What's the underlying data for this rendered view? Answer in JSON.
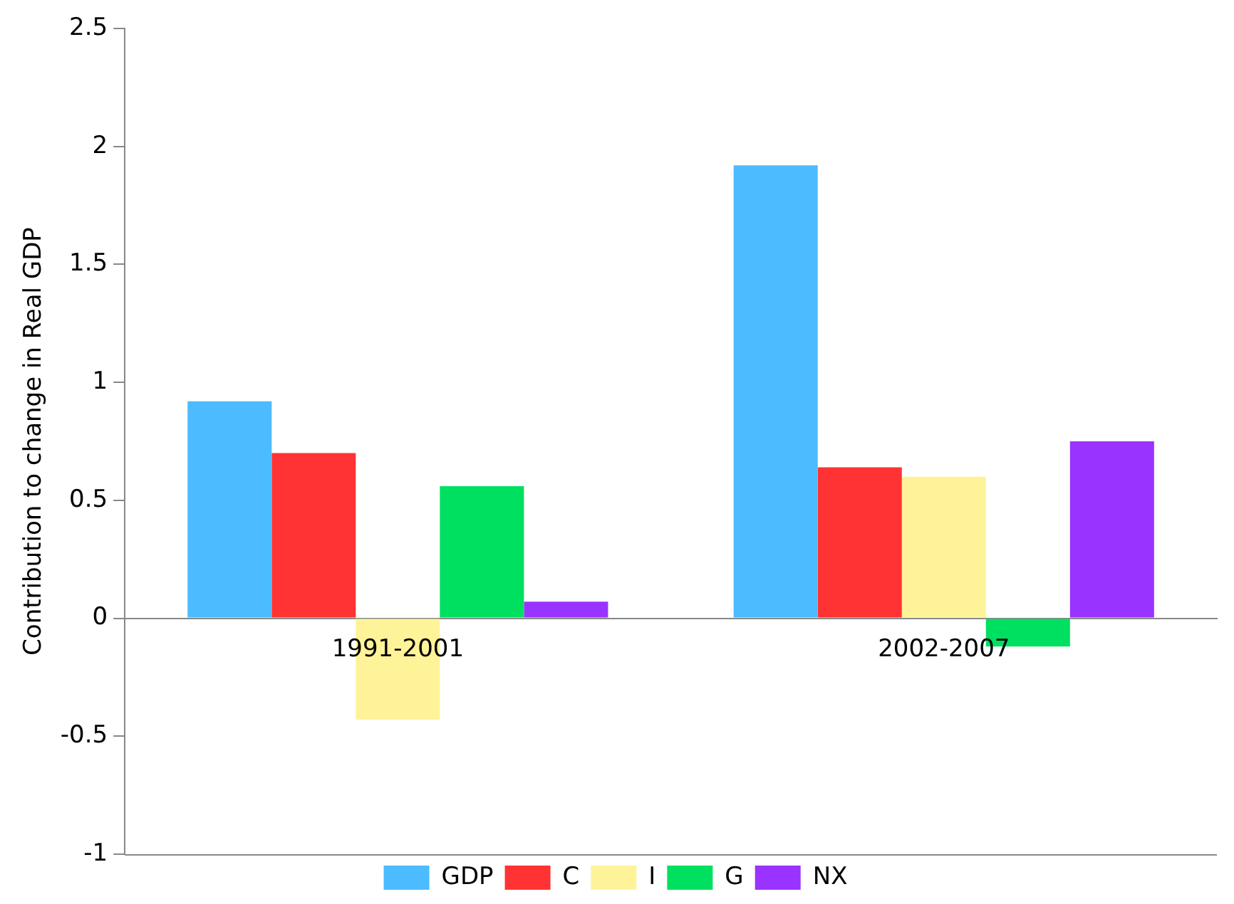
{
  "chart_data": {
    "type": "bar",
    "ylabel": "Contribution to change in Real GDP",
    "categories": [
      "1991-2001",
      "2002-2007"
    ],
    "series": [
      {
        "name": "GDP",
        "color": "#4dbbff",
        "values": [
          0.92,
          1.92
        ]
      },
      {
        "name": "C",
        "color": "#ff3333",
        "values": [
          0.7,
          0.64
        ]
      },
      {
        "name": "I",
        "color": "#fff399",
        "values": [
          -0.43,
          0.6
        ]
      },
      {
        "name": "G",
        "color": "#00e060",
        "values": [
          0.56,
          -0.12
        ]
      },
      {
        "name": "NX",
        "color": "#9933ff",
        "values": [
          0.07,
          0.75
        ]
      }
    ],
    "ylim": [
      -1,
      2.5
    ],
    "yticks": [
      -1,
      -0.5,
      0,
      0.5,
      1,
      1.5,
      2,
      2.5
    ],
    "grid": false,
    "legend": "bottom"
  }
}
